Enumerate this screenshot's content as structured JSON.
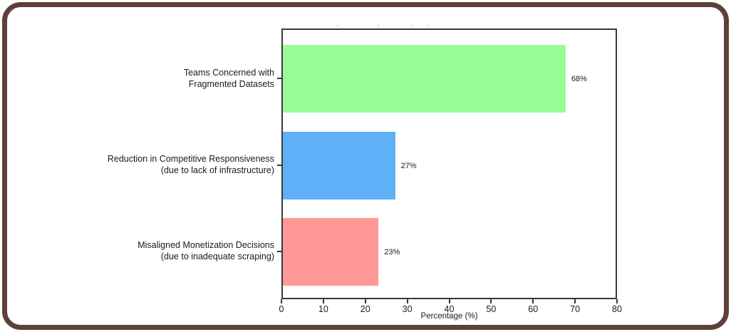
{
  "frame": {
    "border_color": "#5d4037",
    "background": "#ffffff"
  },
  "chart_data": {
    "type": "bar",
    "orientation": "horizontal",
    "title": "",
    "xlabel": "Percentage (%)",
    "ylabel": "",
    "xlim": [
      0,
      80
    ],
    "xticks": [
      "0",
      "10",
      "20",
      "30",
      "40",
      "50",
      "60",
      "70",
      "80"
    ],
    "grid": false,
    "legend": null,
    "categories": [
      "Teams Concerned with Fragmented Datasets",
      "Reduction in Competitive Responsiveness (due to lack of infrastructure)",
      "Misaligned Monetization Decisions (due to inadequate scraping)"
    ],
    "values": [
      68,
      27,
      23
    ],
    "bars": [
      {
        "label_line1": "Teams Concerned with",
        "label_line2": "Fragmented Datasets",
        "value": 68,
        "value_label": "68%",
        "color": "#98fb98"
      },
      {
        "label_line1": "Reduction in Competitive Responsiveness",
        "label_line2": "(due to lack of infrastructure)",
        "value": 27,
        "value_label": "27%",
        "color": "#60b0f7"
      },
      {
        "label_line1": "Misaligned Monetization Decisions",
        "label_line2": "(due to inadequate scraping)",
        "value": 23,
        "value_label": "23%",
        "color": "#ff9896"
      }
    ],
    "text_color": "#1a1a1a",
    "spine_color": "#3a3a3a"
  }
}
